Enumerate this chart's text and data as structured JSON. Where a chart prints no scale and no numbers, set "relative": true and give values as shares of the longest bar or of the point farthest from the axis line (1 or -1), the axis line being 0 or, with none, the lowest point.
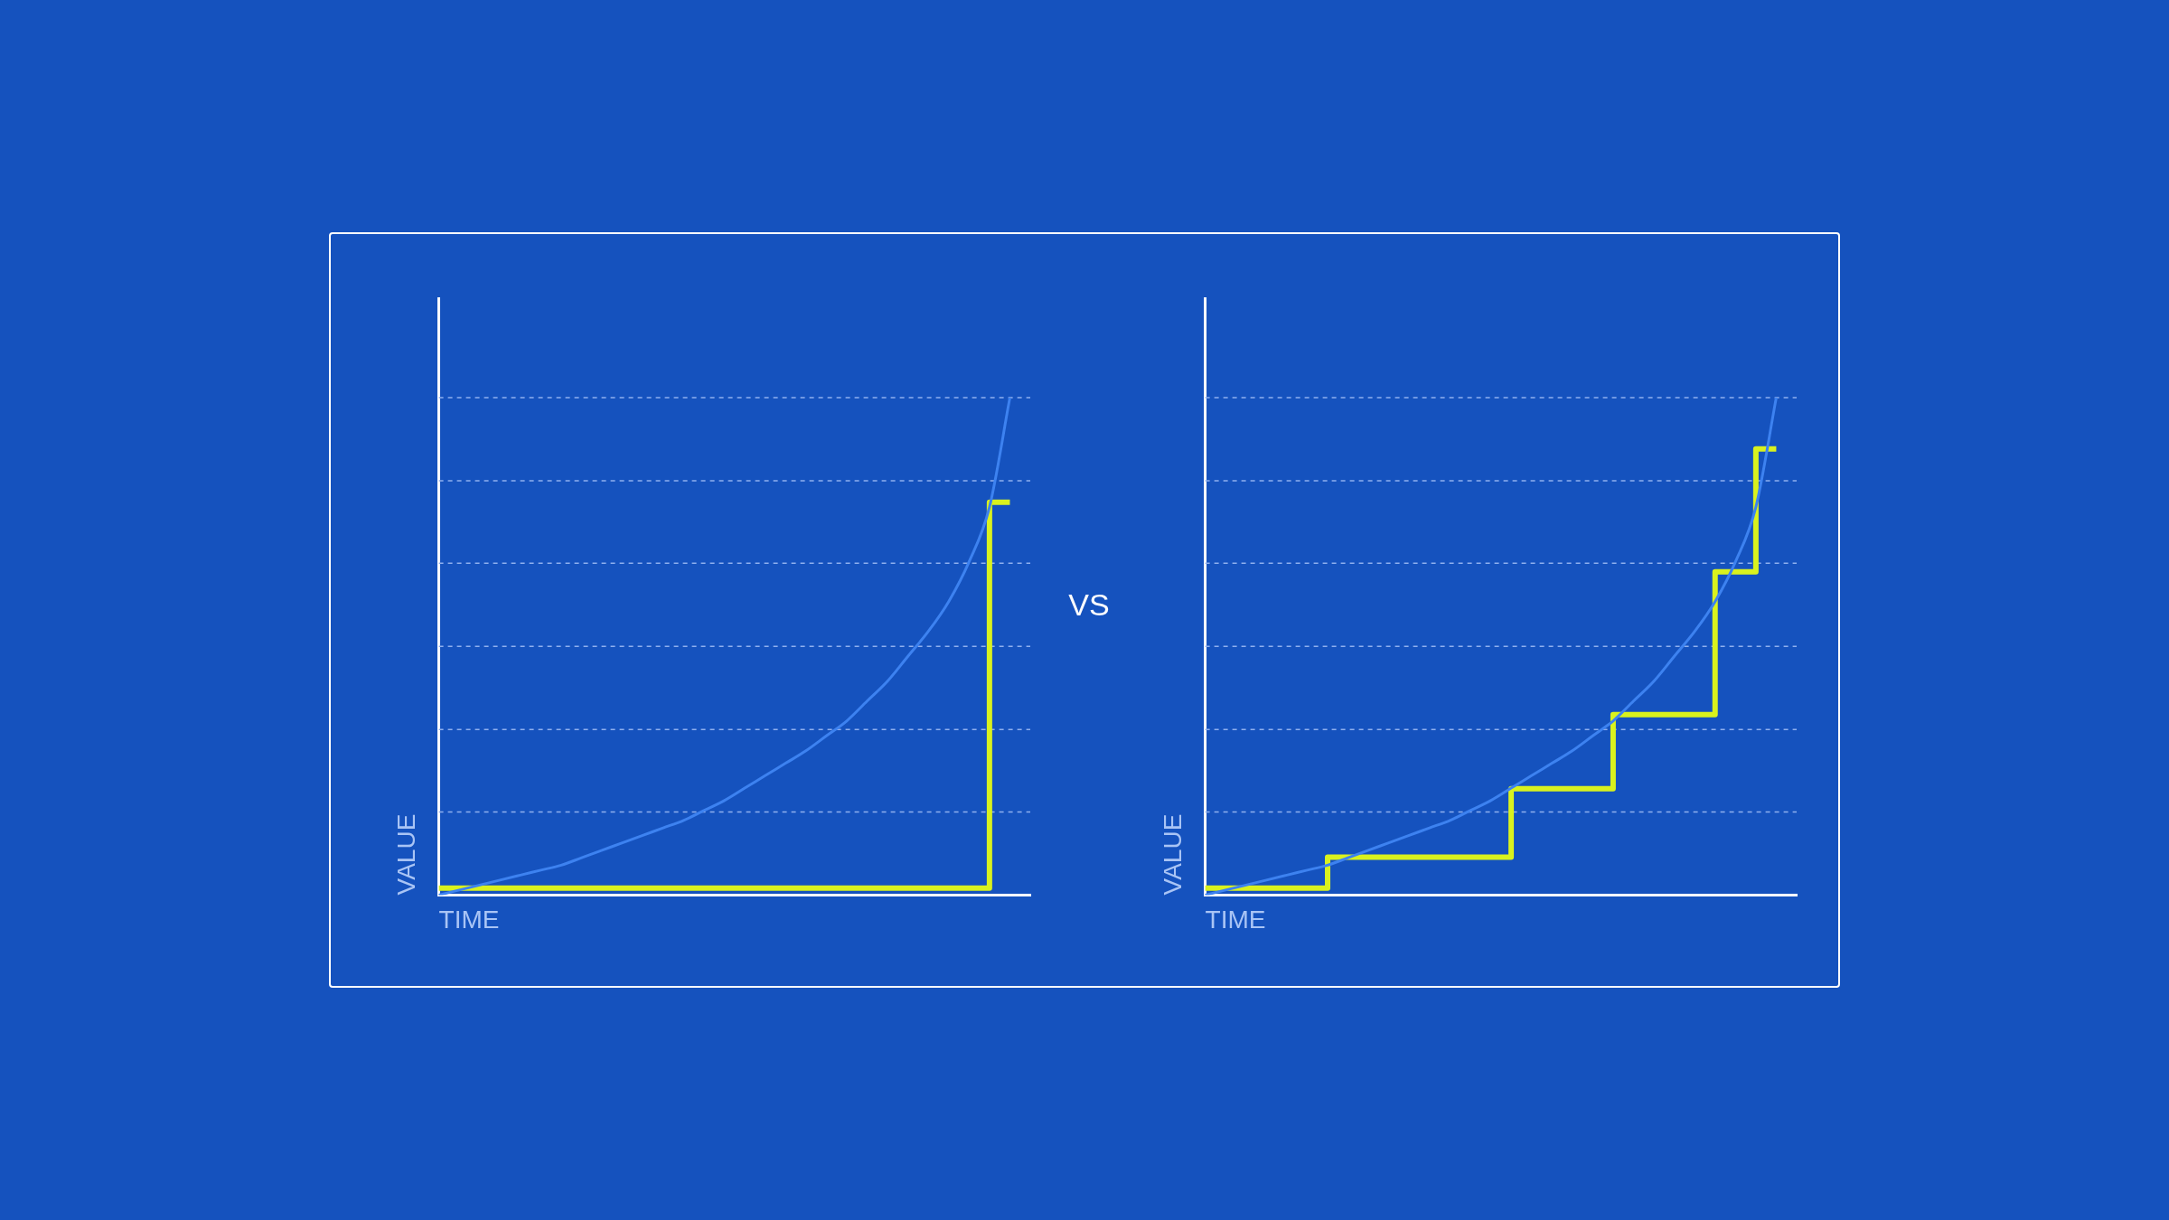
{
  "chart_data": [
    {
      "type": "line",
      "relative": true,
      "xlabel": "TIME",
      "ylabel": "VALUE",
      "annotations": [
        "VS"
      ],
      "ref_lines": [
        {
          "axis": "y",
          "value": 0.167,
          "color": "#8fb0ef",
          "line_style": "dashed"
        },
        {
          "axis": "y",
          "value": 0.333,
          "color": "#8fb0ef",
          "line_style": "dashed"
        },
        {
          "axis": "y",
          "value": 0.5,
          "color": "#8fb0ef",
          "line_style": "dashed"
        },
        {
          "axis": "y",
          "value": 0.667,
          "color": "#8fb0ef",
          "line_style": "dashed"
        },
        {
          "axis": "y",
          "value": 0.833,
          "color": "#8fb0ef",
          "line_style": "dashed"
        },
        {
          "axis": "y",
          "value": 1.0,
          "color": "#8fb0ef",
          "line_style": "dashed"
        }
      ],
      "categories": [
        null,
        null,
        null,
        null,
        null,
        null,
        null,
        null,
        null,
        null,
        null,
        null,
        null,
        null,
        null,
        null,
        null,
        null,
        null,
        null,
        null,
        null,
        null,
        null,
        null,
        null,
        null,
        null,
        null,
        null
      ],
      "series": [
        {
          "type": "line",
          "color": "#3d82f0",
          "values": [
            0,
            0.01,
            0.02,
            0.03,
            0.04,
            0.05,
            0.06,
            0.075,
            0.09,
            0.105,
            0.12,
            0.135,
            0.15,
            0.17,
            0.19,
            0.215,
            0.24,
            0.265,
            0.29,
            0.32,
            0.35,
            0.39,
            0.43,
            0.48,
            0.53,
            0.59,
            0.67,
            0.78,
            1.0,
            null
          ]
        },
        {
          "type": "step",
          "color": "#d9f21e",
          "values": [
            0.014,
            0.014,
            0.014,
            0.014,
            0.014,
            0.014,
            0.014,
            0.014,
            0.014,
            0.014,
            0.014,
            0.014,
            0.014,
            0.014,
            0.014,
            0.014,
            0.014,
            0.014,
            0.014,
            0.014,
            0.014,
            0.014,
            0.014,
            0.014,
            0.014,
            0.014,
            0.014,
            0.014,
            0.79,
            null
          ]
        }
      ]
    },
    {
      "type": "line",
      "relative": true,
      "xlabel": "TIME",
      "ylabel": "VALUE",
      "ref_lines": [
        {
          "axis": "y",
          "value": 0.167,
          "color": "#8fb0ef",
          "line_style": "dashed"
        },
        {
          "axis": "y",
          "value": 0.333,
          "color": "#8fb0ef",
          "line_style": "dashed"
        },
        {
          "axis": "y",
          "value": 0.5,
          "color": "#8fb0ef",
          "line_style": "dashed"
        },
        {
          "axis": "y",
          "value": 0.667,
          "color": "#8fb0ef",
          "line_style": "dashed"
        },
        {
          "axis": "y",
          "value": 0.833,
          "color": "#8fb0ef",
          "line_style": "dashed"
        },
        {
          "axis": "y",
          "value": 1.0,
          "color": "#8fb0ef",
          "line_style": "dashed"
        }
      ],
      "categories": [
        null,
        null,
        null,
        null,
        null,
        null,
        null,
        null,
        null,
        null,
        null,
        null,
        null,
        null,
        null,
        null,
        null,
        null,
        null,
        null,
        null,
        null,
        null,
        null,
        null,
        null,
        null,
        null,
        null,
        null
      ],
      "series": [
        {
          "type": "line",
          "color": "#3d82f0",
          "values": [
            0,
            0.01,
            0.02,
            0.03,
            0.04,
            0.05,
            0.06,
            0.075,
            0.09,
            0.105,
            0.12,
            0.135,
            0.15,
            0.17,
            0.19,
            0.215,
            0.24,
            0.265,
            0.29,
            0.32,
            0.35,
            0.39,
            0.43,
            0.48,
            0.53,
            0.59,
            0.67,
            0.78,
            1.0,
            null
          ]
        },
        {
          "type": "step",
          "color": "#d9f21e",
          "values": [
            0.014,
            0.014,
            0.014,
            0.014,
            0.014,
            0.014,
            0.014,
            0.076,
            0.076,
            0.076,
            0.076,
            0.076,
            0.076,
            0.076,
            0.076,
            0.076,
            0.214,
            0.214,
            0.214,
            0.214,
            0.214,
            0.363,
            0.363,
            0.363,
            0.363,
            0.363,
            0.65,
            0.65,
            0.897,
            null
          ]
        }
      ]
    }
  ]
}
